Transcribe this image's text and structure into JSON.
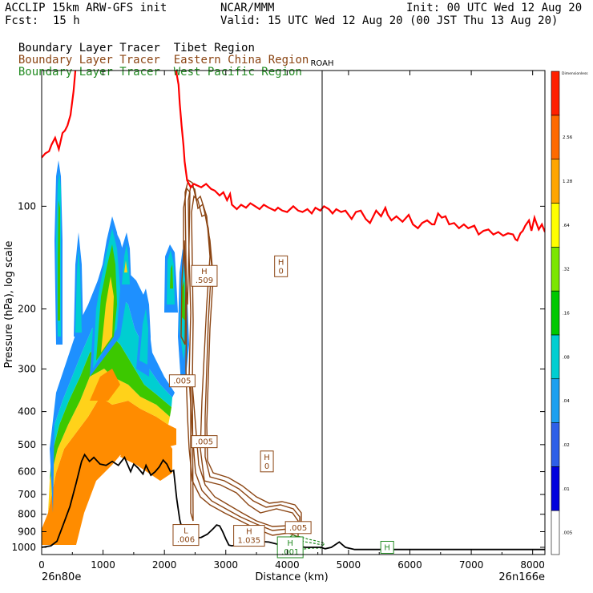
{
  "header": {
    "model": "ACCLIP 15km ARW-GFS init",
    "org": "NCAR/MMM",
    "init": "Init: 00 UTC Wed 12 Aug 20",
    "fcst_label": "Fcst:",
    "fcst_value": "15 h",
    "valid": "Valid: 15 UTC Wed 12 Aug 20 (00 JST Thu 13 Aug 20)"
  },
  "legend": [
    {
      "name": "Boundary Layer Tracer",
      "region": "Tibet Region",
      "color": "#000000"
    },
    {
      "name": "Boundary Layer Tracer",
      "region": "Eastern China Region",
      "color": "#8b4513"
    },
    {
      "name": "Boundary Layer Tracer",
      "region": "West Pacific Region",
      "color": "#228b22"
    }
  ],
  "chart_data": {
    "type": "cross-section",
    "xlabel": "Distance (km)",
    "ylabel": "Pressure (hPa), log scale",
    "xlim": [
      0,
      8200
    ],
    "ylim": [
      1050,
      40
    ],
    "x_ticks": [
      "0",
      "1000",
      "2000",
      "3000",
      "4000",
      "5000",
      "6000",
      "7000",
      "8000"
    ],
    "x_tick_values": [
      0,
      1000,
      2000,
      3000,
      4000,
      5000,
      6000,
      7000,
      8000
    ],
    "y_ticks": [
      "100",
      "200",
      "300",
      "400",
      "500",
      "600",
      "700",
      "800",
      "900",
      "1000"
    ],
    "y_tick_values": [
      100,
      200,
      300,
      400,
      500,
      600,
      700,
      800,
      900,
      1000
    ],
    "start_label": "26n80e",
    "end_label": "26n166e",
    "marker": {
      "label": "ROAH",
      "x_km": 4570
    },
    "colorbar": {
      "title": "Dimensionless",
      "labels": [
        ".005",
        ".01",
        ".02",
        ".04",
        ".08",
        ".16",
        ".32",
        ".64",
        "1.28",
        "2.56"
      ],
      "colors": [
        "#ffffff",
        "#0000dd",
        "#2e5fe8",
        "#1ca0f0",
        "#00ced1",
        "#00c800",
        "#7ce600",
        "#ffff00",
        "#ffa500",
        "#ff6a00",
        "#ff2000"
      ]
    },
    "labels": [
      {
        "kind": "H",
        "value": "0",
        "x_km": 3900,
        "p": 150,
        "color": "#8b4513"
      },
      {
        "kind": "H",
        "value": ".509",
        "x_km": 2650,
        "p": 160,
        "color": "#8b4513"
      },
      {
        "kind": "",
        "value": ".005",
        "x_km": 2290,
        "p": 325,
        "color": "#8b4513"
      },
      {
        "kind": "",
        "value": ".005",
        "x_km": 2650,
        "p": 490,
        "color": "#8b4513"
      },
      {
        "kind": "H",
        "value": "0",
        "x_km": 3670,
        "p": 560,
        "color": "#8b4513"
      },
      {
        "kind": "L",
        "value": ".006",
        "x_km": 2350,
        "p": 920,
        "color": "#8b4513"
      },
      {
        "kind": "H",
        "value": "1.035",
        "x_km": 3380,
        "p": 925,
        "color": "#8b4513"
      },
      {
        "kind": "",
        "value": ".005",
        "x_km": 4180,
        "p": 875,
        "color": "#8b4513"
      },
      {
        "kind": "H",
        "value": ".001",
        "x_km": 4050,
        "p": 1000,
        "color": "#228b22"
      },
      {
        "kind": "H",
        "value": "",
        "x_km": 5630,
        "p": 1000,
        "color": "#228b22"
      }
    ],
    "series": [
      {
        "name": "tropopause",
        "color": "#ff0000",
        "points": [
          [
            0,
            72
          ],
          [
            60,
            70
          ],
          [
            120,
            69
          ],
          [
            160,
            66
          ],
          [
            220,
            63
          ],
          [
            280,
            68
          ],
          [
            340,
            61
          ],
          [
            380,
            60
          ],
          [
            420,
            58
          ],
          [
            470,
            54
          ],
          [
            520,
            46
          ],
          [
            560,
            38
          ],
          [
            1900,
            38
          ],
          [
            2190,
            40
          ],
          [
            2230,
            44
          ],
          [
            2250,
            50
          ],
          [
            2280,
            58
          ],
          [
            2310,
            66
          ],
          [
            2330,
            74
          ],
          [
            2370,
            84
          ],
          [
            2430,
            88
          ],
          [
            2480,
            86
          ],
          [
            2540,
            87
          ],
          [
            2600,
            88
          ],
          [
            2680,
            86
          ],
          [
            2760,
            89
          ],
          [
            2820,
            90
          ],
          [
            2900,
            93
          ],
          [
            2960,
            91
          ],
          [
            3020,
            96
          ],
          [
            3070,
            92
          ],
          [
            3100,
            99
          ],
          [
            3180,
            102
          ],
          [
            3250,
            99
          ],
          [
            3330,
            101
          ],
          [
            3400,
            98
          ],
          [
            3480,
            100
          ],
          [
            3550,
            102
          ],
          [
            3620,
            99
          ],
          [
            3700,
            101
          ],
          [
            3800,
            103
          ],
          [
            3850,
            101
          ],
          [
            3920,
            103
          ],
          [
            4000,
            104
          ],
          [
            4100,
            100
          ],
          [
            4180,
            103
          ],
          [
            4250,
            104
          ],
          [
            4330,
            102
          ],
          [
            4400,
            105
          ],
          [
            4460,
            101
          ],
          [
            4540,
            103
          ],
          [
            4600,
            100
          ],
          [
            4680,
            102
          ],
          [
            4740,
            105
          ],
          [
            4800,
            102
          ],
          [
            4880,
            104
          ],
          [
            4950,
            103
          ],
          [
            5050,
            109
          ],
          [
            5120,
            104
          ],
          [
            5200,
            103
          ],
          [
            5280,
            109
          ],
          [
            5350,
            112
          ],
          [
            5450,
            103
          ],
          [
            5530,
            107
          ],
          [
            5600,
            101
          ],
          [
            5640,
            106
          ],
          [
            5700,
            110
          ],
          [
            5780,
            107
          ],
          [
            5880,
            111
          ],
          [
            5980,
            106
          ],
          [
            6050,
            113
          ],
          [
            6130,
            116
          ],
          [
            6200,
            112
          ],
          [
            6280,
            110
          ],
          [
            6360,
            113
          ],
          [
            6400,
            113
          ],
          [
            6460,
            105
          ],
          [
            6520,
            108
          ],
          [
            6580,
            107
          ],
          [
            6640,
            113
          ],
          [
            6720,
            112
          ],
          [
            6800,
            116
          ],
          [
            6880,
            113
          ],
          [
            6950,
            116
          ],
          [
            7050,
            114
          ],
          [
            7120,
            121
          ],
          [
            7200,
            118
          ],
          [
            7280,
            117
          ],
          [
            7360,
            121
          ],
          [
            7440,
            119
          ],
          [
            7520,
            122
          ],
          [
            7600,
            120
          ],
          [
            7680,
            121
          ],
          [
            7720,
            125
          ],
          [
            7750,
            126
          ],
          [
            7800,
            120
          ],
          [
            7840,
            118
          ],
          [
            7880,
            114
          ],
          [
            7940,
            110
          ],
          [
            7980,
            118
          ],
          [
            8000,
            114
          ],
          [
            8030,
            108
          ],
          [
            8060,
            112
          ],
          [
            8100,
            117
          ],
          [
            8150,
            113
          ],
          [
            8200,
            119
          ]
        ]
      },
      {
        "name": "terrain",
        "color": "#000000",
        "points": [
          [
            0,
            1000
          ],
          [
            150,
            990
          ],
          [
            250,
            960
          ],
          [
            350,
            860
          ],
          [
            460,
            760
          ],
          [
            560,
            650
          ],
          [
            650,
            560
          ],
          [
            700,
            535
          ],
          [
            780,
            560
          ],
          [
            850,
            545
          ],
          [
            950,
            570
          ],
          [
            1050,
            575
          ],
          [
            1150,
            560
          ],
          [
            1250,
            575
          ],
          [
            1350,
            545
          ],
          [
            1450,
            600
          ],
          [
            1500,
            570
          ],
          [
            1570,
            585
          ],
          [
            1650,
            610
          ],
          [
            1700,
            575
          ],
          [
            1780,
            615
          ],
          [
            1850,
            600
          ],
          [
            1920,
            580
          ],
          [
            1980,
            555
          ],
          [
            2040,
            570
          ],
          [
            2100,
            600
          ],
          [
            2150,
            595
          ],
          [
            2200,
            720
          ],
          [
            2250,
            830
          ],
          [
            2300,
            900
          ],
          [
            2400,
            935
          ],
          [
            2500,
            940
          ],
          [
            2600,
            935
          ],
          [
            2700,
            915
          ],
          [
            2800,
            880
          ],
          [
            2850,
            860
          ],
          [
            2900,
            865
          ],
          [
            2950,
            900
          ],
          [
            3000,
            945
          ],
          [
            3050,
            985
          ],
          [
            3100,
            990
          ],
          [
            3300,
            975
          ],
          [
            3500,
            960
          ],
          [
            3700,
            965
          ],
          [
            3900,
            985
          ],
          [
            4100,
            990
          ],
          [
            4300,
            1000
          ],
          [
            4550,
            1000
          ],
          [
            4620,
            1010
          ],
          [
            4720,
            1000
          ],
          [
            4850,
            965
          ],
          [
            4950,
            1000
          ],
          [
            5100,
            1015
          ],
          [
            8200,
            1015
          ]
        ]
      }
    ]
  }
}
